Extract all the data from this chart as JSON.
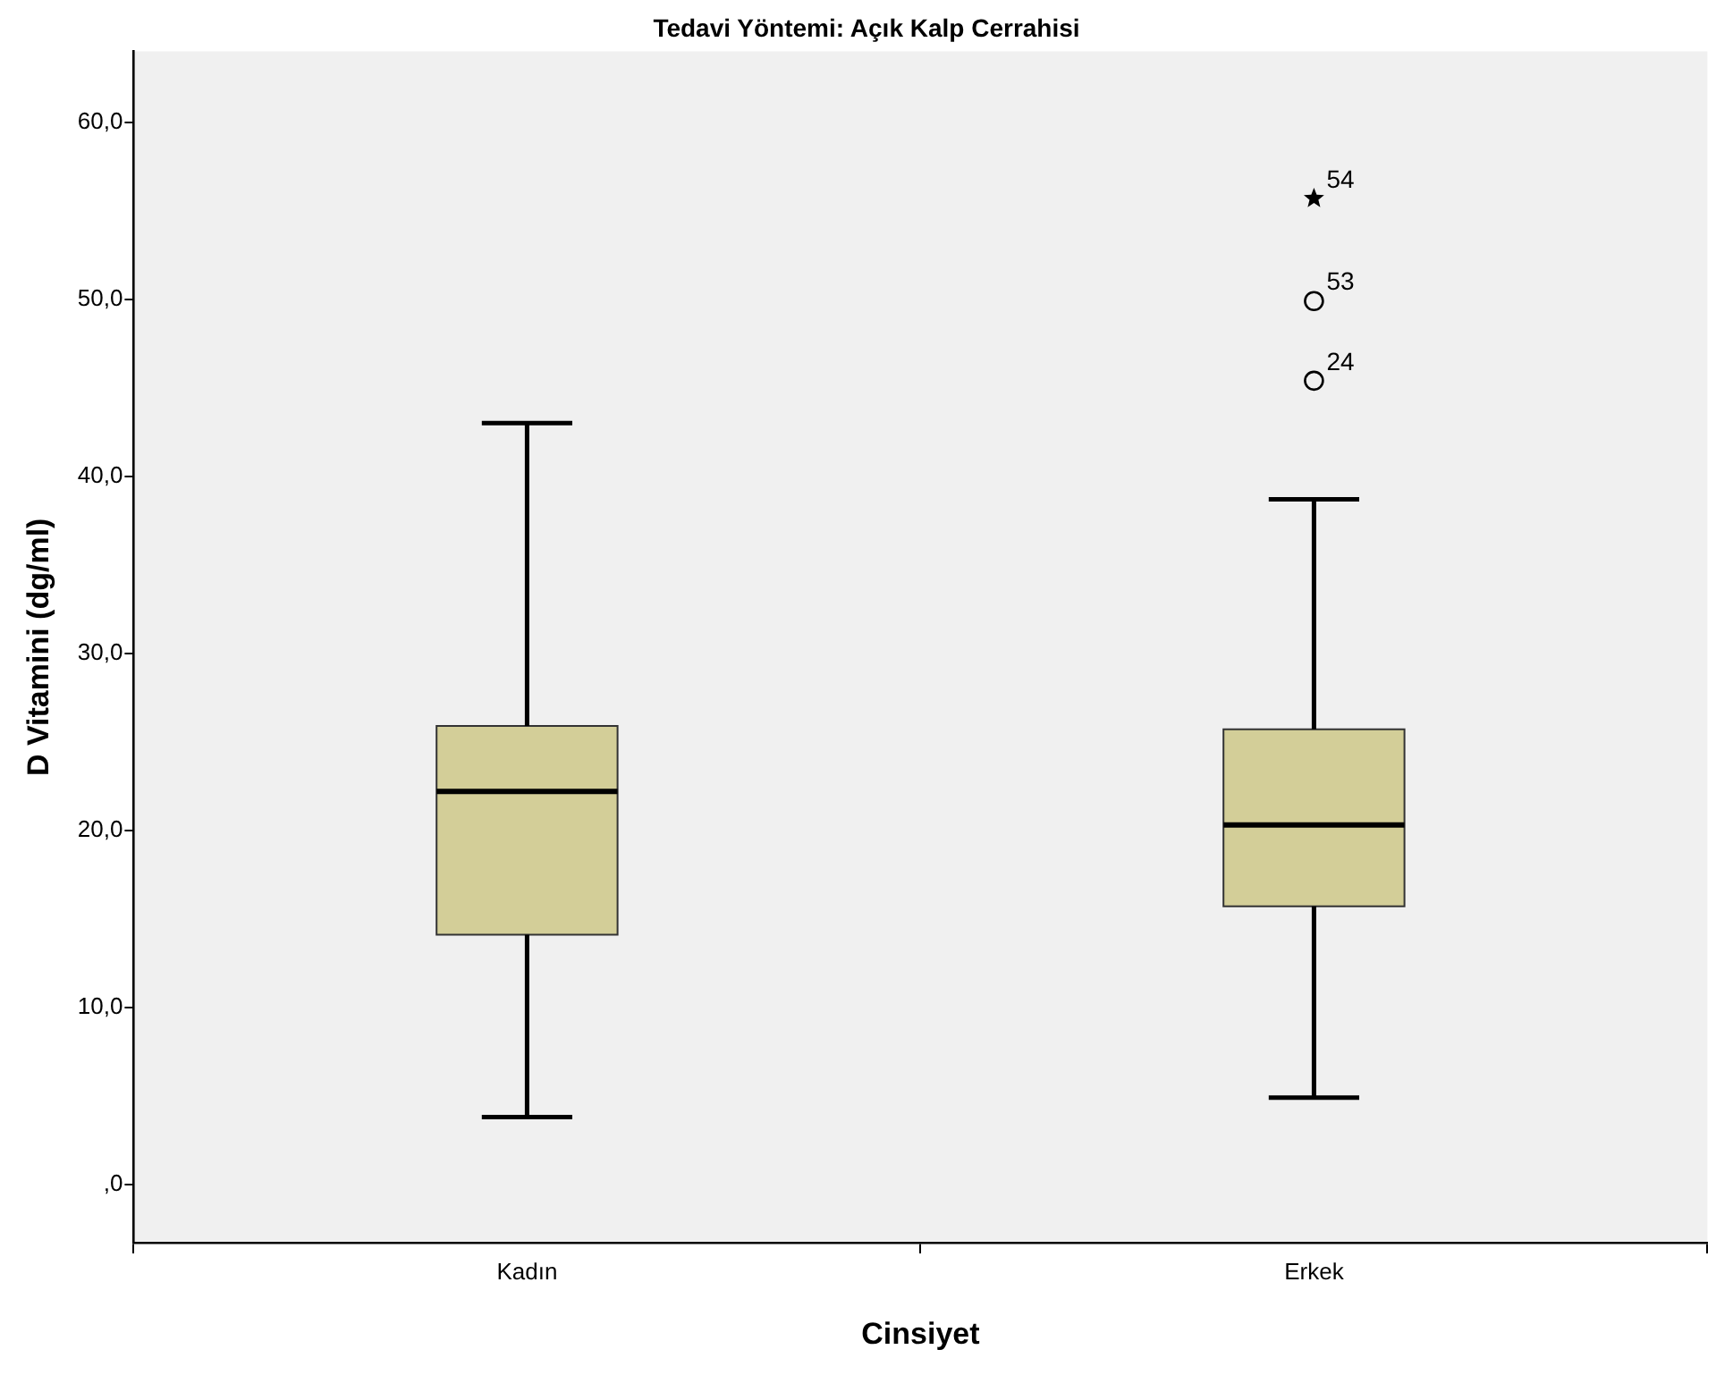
{
  "chart_data": {
    "type": "box",
    "title": "Tedavi Yöntemi: Açık Kalp Cerrahisi",
    "xlabel": "Cinsiyet",
    "ylabel": "D Vitamini (dg/ml)",
    "categories": [
      "Kadın",
      "Erkek"
    ],
    "series": [
      {
        "type": "box",
        "color": "#d3ce98",
        "boxes": [
          {
            "low": 3.8,
            "q1": 14.1,
            "median": 22.2,
            "q3": 25.9,
            "high": 43.0
          },
          {
            "low": 4.9,
            "q1": 15.7,
            "median": 20.3,
            "q3": 25.7,
            "high": 38.7,
            "outliers": [
              45.4,
              49.9
            ]
          }
        ]
      },
      {
        "type": "scatter",
        "marker": "star",
        "color": "#000000",
        "x": [
          "Erkek"
        ],
        "values": [
          55.7
        ]
      }
    ],
    "ylim": [
      -3.3,
      64
    ],
    "yticks": [
      {
        "value": 0,
        "label": ",0"
      },
      {
        "value": 10,
        "label": "10,0"
      },
      {
        "value": 20,
        "label": "20,0"
      },
      {
        "value": 30,
        "label": "30,0"
      },
      {
        "value": 40,
        "label": "40,0"
      },
      {
        "value": 50,
        "label": "50,0"
      },
      {
        "value": 60,
        "label": "60,0"
      }
    ],
    "grid": false,
    "legend": false,
    "annotations": [
      "24",
      "53",
      {
        "text": "54",
        "x": "Erkek",
        "y": 55.7
      }
    ]
  }
}
